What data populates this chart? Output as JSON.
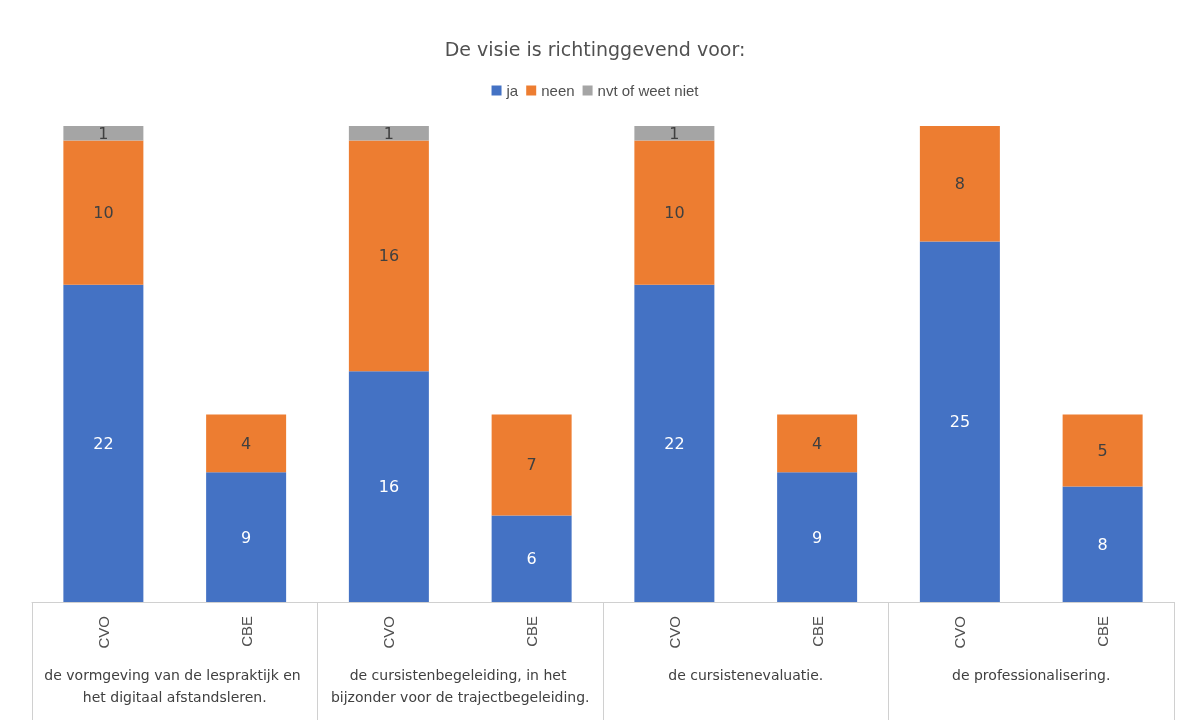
{
  "chart_data": {
    "type": "bar",
    "title": "De visie is richtinggevend voor:",
    "stacked": true,
    "data_labels": true,
    "legend": "top",
    "categories": [
      "CVO",
      "CBE",
      "CVO",
      "CBE",
      "CVO",
      "CBE",
      "CVO",
      "CBE"
    ],
    "annotations": [
      "de vormgeving van de lespraktijk en het digitaal afstandsleren.",
      "de cursistenbegeleiding, in het bijzonder voor de trajectbegeleiding.",
      "de cursistenevaluatie.",
      "de professionalisering."
    ],
    "series": [
      {
        "name": "ja",
        "color": "#4472c4",
        "values": [
          22,
          9,
          16,
          6,
          22,
          9,
          25,
          8
        ]
      },
      {
        "name": "neen",
        "color": "#ed7d31",
        "values": [
          10,
          4,
          16,
          7,
          10,
          4,
          8,
          5
        ]
      },
      {
        "name": "nvt of weet niet",
        "color": "#a5a5a5",
        "values": [
          1,
          null,
          1,
          null,
          1,
          null,
          null,
          null
        ]
      }
    ]
  }
}
